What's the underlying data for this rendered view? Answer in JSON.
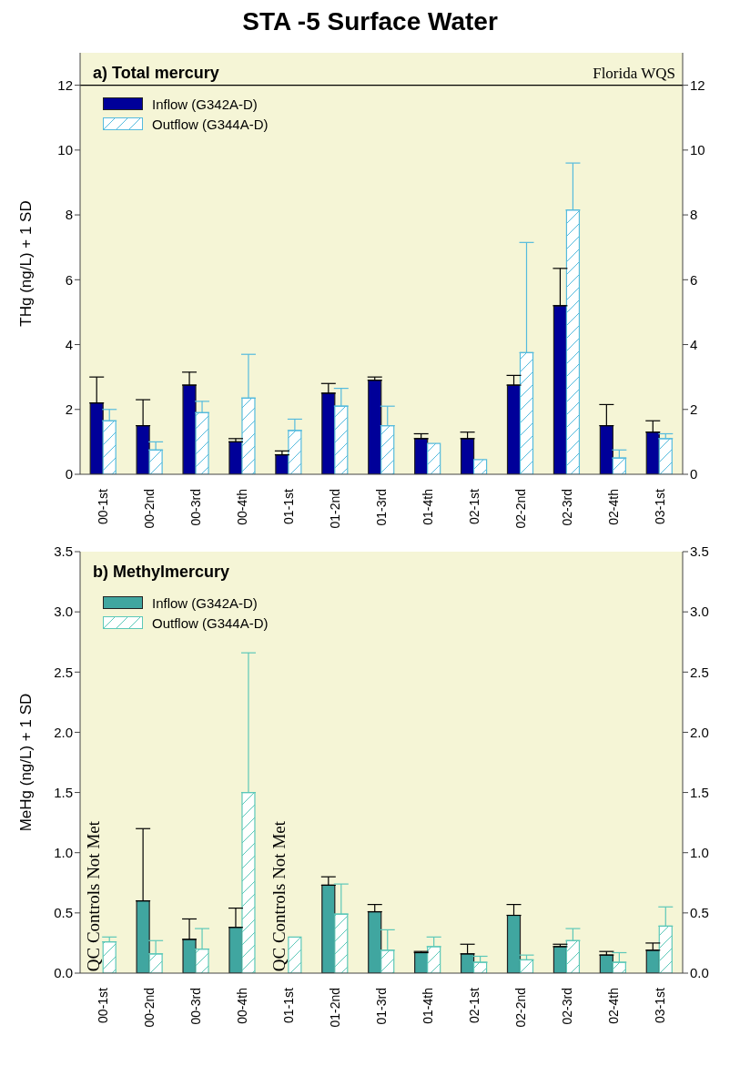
{
  "chart_data": [
    {
      "type": "bar",
      "title": "STA -5 Surface Water",
      "subtitle": "a) Total mercury",
      "ylabel": "THg (ng/L) + 1 SD",
      "categories": [
        "00-1st",
        "00-2nd",
        "00-3rd",
        "00-4th",
        "01-1st",
        "01-2nd",
        "01-3rd",
        "01-4th",
        "02-1st",
        "02-2nd",
        "02-3rd",
        "02-4th",
        "03-1st"
      ],
      "series": [
        {
          "name": "Inflow (G342A-D)",
          "color": "#000099",
          "values": [
            2.2,
            1.5,
            2.75,
            1.0,
            0.6,
            2.5,
            2.9,
            1.1,
            1.1,
            2.75,
            5.2,
            1.5,
            1.3
          ],
          "errors": [
            [
              2.2,
              3.0
            ],
            [
              1.5,
              2.3
            ],
            [
              2.75,
              3.15
            ],
            [
              1.0,
              1.1
            ],
            [
              0.6,
              0.72
            ],
            [
              2.5,
              2.8
            ],
            [
              2.9,
              3.0
            ],
            [
              1.1,
              1.25
            ],
            [
              1.1,
              1.3
            ],
            [
              2.75,
              3.05
            ],
            [
              5.2,
              6.35
            ],
            [
              1.5,
              2.15
            ],
            [
              1.3,
              1.65
            ]
          ]
        },
        {
          "name": "Outflow (G344A-D)",
          "color": "#55bbdd",
          "values": [
            1.65,
            0.75,
            1.9,
            2.35,
            1.35,
            2.1,
            1.5,
            0.95,
            0.45,
            3.75,
            8.15,
            0.5,
            1.1
          ],
          "errors": [
            [
              1.65,
              2.0
            ],
            [
              0.75,
              1.0
            ],
            [
              1.9,
              2.25
            ],
            [
              2.35,
              3.7
            ],
            [
              1.35,
              1.7
            ],
            [
              2.1,
              2.65
            ],
            [
              1.5,
              2.1
            ],
            null,
            null,
            [
              3.75,
              7.15
            ],
            [
              8.15,
              9.6
            ],
            [
              0.5,
              0.75
            ],
            [
              1.1,
              1.25
            ]
          ]
        }
      ],
      "ylim": [
        0,
        13
      ],
      "yticks": [
        0,
        2,
        4,
        6,
        8,
        10,
        12
      ],
      "y2lim": [
        0,
        13
      ],
      "y2ticks": [
        0,
        2,
        4,
        6,
        8,
        10,
        12
      ],
      "ref_lines": [
        {
          "axis": "y",
          "value": 12,
          "label": "Florida WQS",
          "color": "#000000"
        }
      ],
      "legend": "top left"
    },
    {
      "type": "bar",
      "subtitle": "b) Methylmercury",
      "ylabel": "MeHg (ng/L) + 1 SD",
      "categories": [
        "00-1st",
        "00-2nd",
        "00-3rd",
        "00-4th",
        "01-1st",
        "01-2nd",
        "01-3rd",
        "01-4th",
        "02-1st",
        "02-2nd",
        "02-3rd",
        "02-4th",
        "03-1st"
      ],
      "series": [
        {
          "name": "Inflow (G342A-D)",
          "color": "#40a6a0",
          "values": [
            null,
            0.6,
            0.28,
            0.38,
            null,
            0.73,
            0.51,
            0.17,
            0.16,
            0.48,
            0.22,
            0.15,
            0.19
          ],
          "errors": [
            null,
            [
              0.6,
              1.2
            ],
            [
              0.28,
              0.45
            ],
            [
              0.38,
              0.54
            ],
            null,
            [
              0.73,
              0.8
            ],
            [
              0.51,
              0.57
            ],
            [
              0.17,
              0.18
            ],
            [
              0.16,
              0.24
            ],
            [
              0.48,
              0.57
            ],
            [
              0.22,
              0.24
            ],
            [
              0.15,
              0.18
            ],
            [
              0.19,
              0.25
            ]
          ]
        },
        {
          "name": "Outflow (G344A-D)",
          "color": "#5cc8b8",
          "values": [
            0.26,
            0.16,
            0.2,
            1.5,
            0.3,
            0.49,
            0.19,
            0.22,
            0.09,
            0.11,
            0.27,
            0.09,
            0.39
          ],
          "errors": [
            [
              0.26,
              0.3
            ],
            [
              0.16,
              0.27
            ],
            [
              0.2,
              0.37
            ],
            [
              1.5,
              2.66
            ],
            null,
            [
              0.49,
              0.74
            ],
            [
              0.19,
              0.36
            ],
            [
              0.22,
              0.3
            ],
            [
              0.09,
              0.14
            ],
            [
              0.11,
              0.15
            ],
            [
              0.27,
              0.37
            ],
            [
              0.09,
              0.17
            ],
            [
              0.39,
              0.55
            ]
          ]
        }
      ],
      "ylim": [
        0,
        3.5
      ],
      "yticks": [
        {
          "value": 0,
          "label": "0.0"
        },
        {
          "value": 0.5,
          "label": "0.5"
        },
        {
          "value": 1,
          "label": "1.0"
        },
        {
          "value": 1.5,
          "label": "1.5"
        },
        {
          "value": 2,
          "label": "2.0"
        },
        {
          "value": 2.5,
          "label": "2.5"
        },
        {
          "value": 3,
          "label": "3.0"
        },
        {
          "value": 3.5,
          "label": "3.5"
        }
      ],
      "y2lim": [
        0,
        3.5
      ],
      "y2ticks": [
        {
          "value": 0,
          "label": "0.0"
        },
        {
          "value": 0.5,
          "label": "0.5"
        },
        {
          "value": 1,
          "label": "1.0"
        },
        {
          "value": 1.5,
          "label": "1.5"
        },
        {
          "value": 2,
          "label": "2.0"
        },
        {
          "value": 2.5,
          "label": "2.5"
        },
        {
          "value": 3,
          "label": "3.0"
        },
        {
          "value": 3.5,
          "label": "3.5"
        }
      ],
      "annotations": [
        "QC Controls Not Met",
        "QC Controls Not Met"
      ],
      "legend": "top left"
    }
  ]
}
